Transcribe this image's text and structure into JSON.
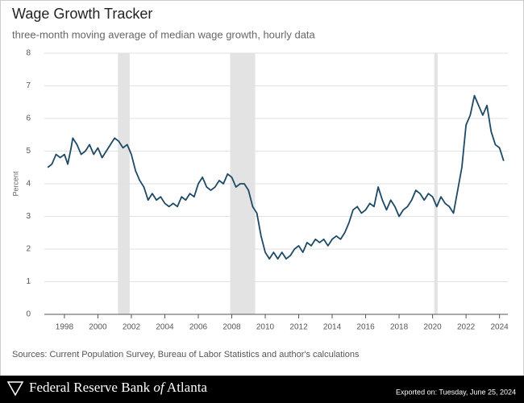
{
  "chart_data": {
    "type": "line",
    "title": "Wage Growth Tracker",
    "subtitle": "three-month moving average of median wage growth, hourly data",
    "y_label": "Percent",
    "color": "#1c4966",
    "shade_color": "#e3e3e3",
    "grid": true,
    "x": [
      1997.0,
      1997.25,
      1997.5,
      1997.75,
      1998.0,
      1998.2,
      1998.4,
      1998.5,
      1998.75,
      1999.0,
      1999.25,
      1999.5,
      1999.75,
      2000.0,
      2000.25,
      2000.5,
      2000.75,
      2001.0,
      2001.25,
      2001.5,
      2001.75,
      2002.0,
      2002.25,
      2002.5,
      2002.75,
      2003.0,
      2003.25,
      2003.5,
      2003.75,
      2004.0,
      2004.25,
      2004.5,
      2004.75,
      2005.0,
      2005.25,
      2005.5,
      2005.75,
      2006.0,
      2006.25,
      2006.5,
      2006.75,
      2007.0,
      2007.25,
      2007.5,
      2007.75,
      2008.0,
      2008.25,
      2008.5,
      2008.75,
      2009.0,
      2009.25,
      2009.5,
      2009.75,
      2010.0,
      2010.25,
      2010.5,
      2010.75,
      2011.0,
      2011.25,
      2011.5,
      2011.75,
      2012.0,
      2012.25,
      2012.5,
      2012.75,
      2013.0,
      2013.25,
      2013.5,
      2013.75,
      2014.0,
      2014.25,
      2014.5,
      2014.75,
      2015.0,
      2015.25,
      2015.5,
      2015.75,
      2016.0,
      2016.25,
      2016.5,
      2016.75,
      2017.0,
      2017.25,
      2017.5,
      2017.75,
      2018.0,
      2018.25,
      2018.5,
      2018.75,
      2019.0,
      2019.25,
      2019.5,
      2019.75,
      2020.0,
      2020.25,
      2020.5,
      2020.75,
      2021.0,
      2021.25,
      2021.5,
      2021.75,
      2022.0,
      2022.25,
      2022.5,
      2022.75,
      2023.0,
      2023.25,
      2023.5,
      2023.75,
      2024.0,
      2024.25
    ],
    "values": [
      4.5,
      4.6,
      4.9,
      4.8,
      4.9,
      4.6,
      5.1,
      5.4,
      5.2,
      4.9,
      5.0,
      5.2,
      4.9,
      5.1,
      4.8,
      5.0,
      5.2,
      5.4,
      5.3,
      5.1,
      5.2,
      4.9,
      4.4,
      4.1,
      3.9,
      3.5,
      3.7,
      3.5,
      3.6,
      3.4,
      3.3,
      3.4,
      3.3,
      3.6,
      3.5,
      3.7,
      3.6,
      4.0,
      4.2,
      3.9,
      3.8,
      3.9,
      4.1,
      4.0,
      4.3,
      4.2,
      3.9,
      4.0,
      4.0,
      3.8,
      3.3,
      3.1,
      2.4,
      1.9,
      1.7,
      1.9,
      1.7,
      1.9,
      1.7,
      1.8,
      2.0,
      2.1,
      1.9,
      2.2,
      2.1,
      2.3,
      2.2,
      2.3,
      2.1,
      2.3,
      2.4,
      2.3,
      2.5,
      2.8,
      3.2,
      3.3,
      3.1,
      3.2,
      3.4,
      3.3,
      3.9,
      3.5,
      3.2,
      3.5,
      3.3,
      3.0,
      3.2,
      3.3,
      3.5,
      3.8,
      3.7,
      3.5,
      3.7,
      3.6,
      3.3,
      3.6,
      3.4,
      3.3,
      3.1,
      3.8,
      4.5,
      5.8,
      6.1,
      6.7,
      6.4,
      6.1,
      6.4,
      5.6,
      5.2,
      5.1,
      4.7
    ],
    "recessions": [
      [
        2001.2,
        2001.9
      ],
      [
        2007.9,
        2009.4
      ],
      [
        2020.1,
        2020.3
      ]
    ],
    "xlim": [
      1996.8,
      2024.5
    ],
    "xticks": [
      1998,
      2000,
      2002,
      2004,
      2006,
      2008,
      2010,
      2012,
      2014,
      2016,
      2018,
      2020,
      2022,
      2024
    ],
    "ylim": [
      0,
      8
    ],
    "yticks": [
      0,
      1,
      2,
      3,
      4,
      5,
      6,
      7,
      8
    ],
    "source": "Sources: Current Population Survey, Bureau of Labor Statistics and author's calculations"
  },
  "footer": {
    "bank": "Federal Reserve Bank",
    "of": "of",
    "city": "Atlanta",
    "exported": "Exported on: Tuesday, June 25, 2024"
  }
}
